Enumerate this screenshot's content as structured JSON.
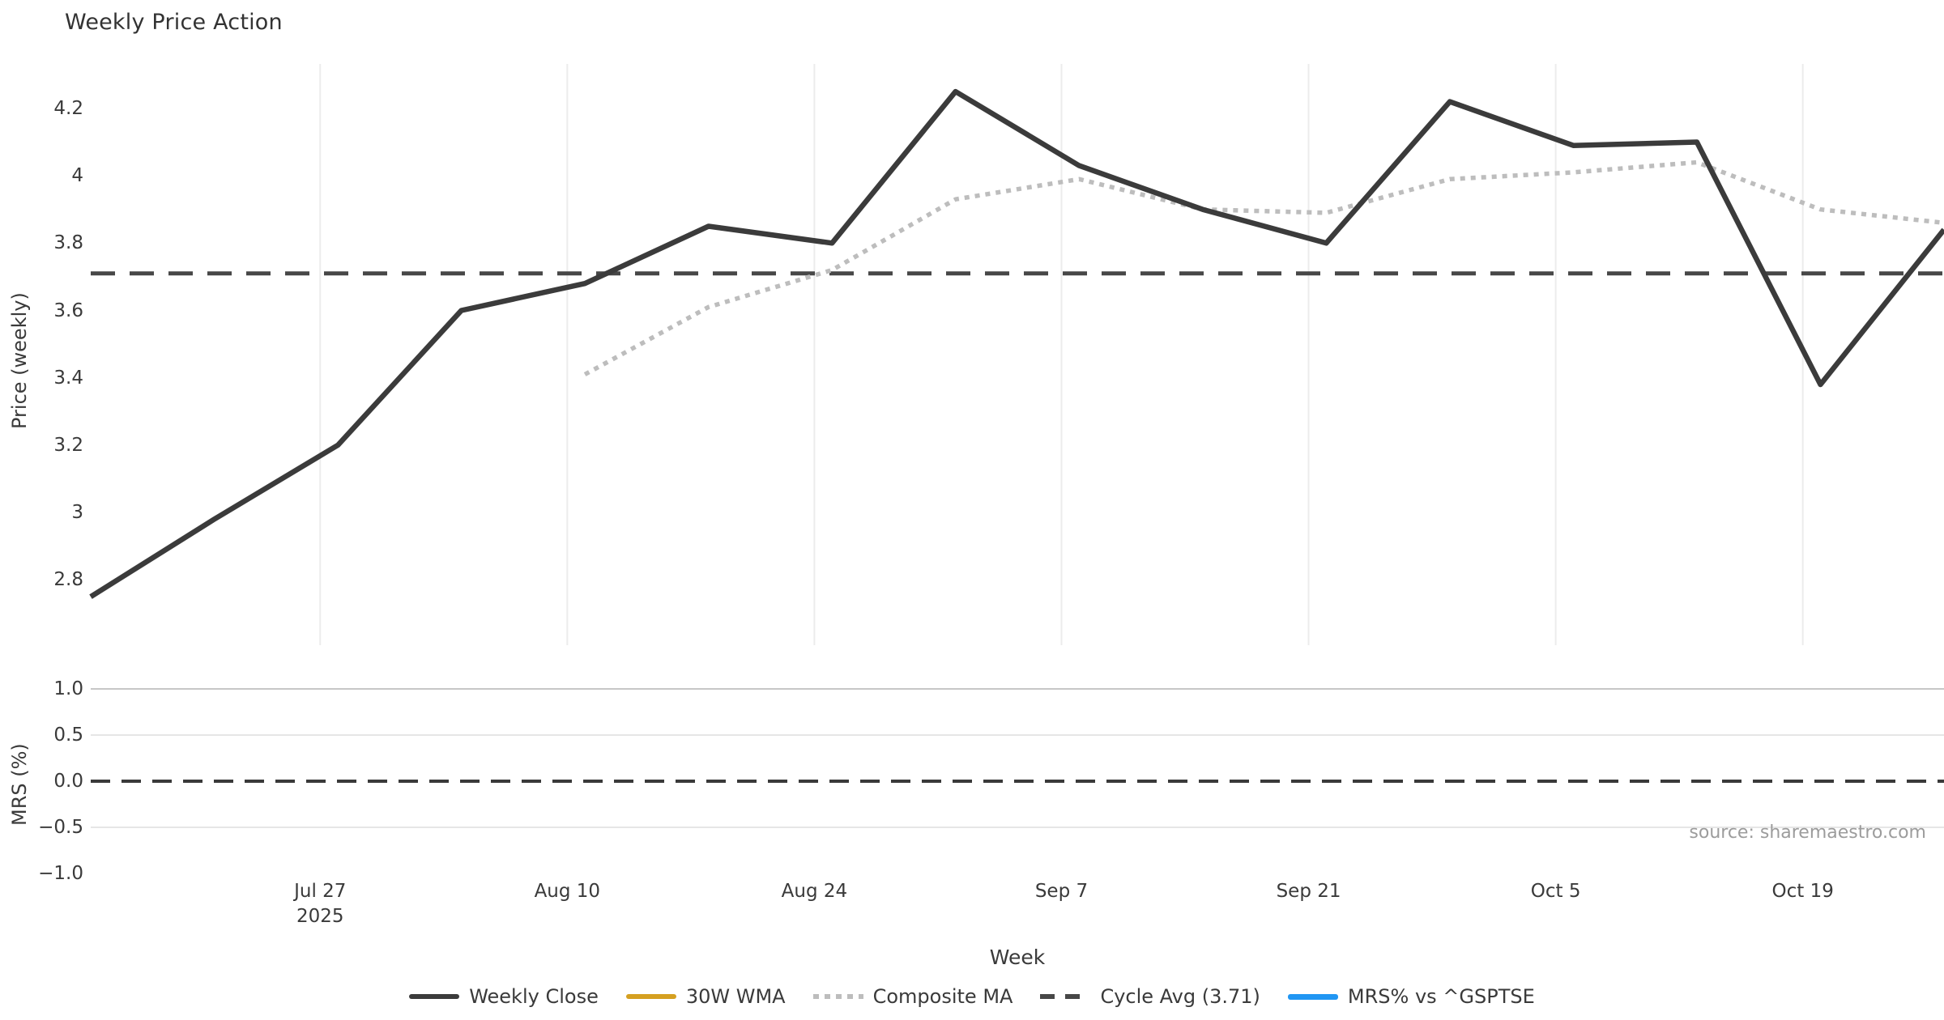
{
  "title": "Weekly Price Action",
  "source_note": "source: sharemaestro.com",
  "colors": {
    "weekly_close": "#3b3b3b",
    "wma_30w": "#d5a021",
    "composite_ma": "#bdbdbd",
    "cycle_avg": "#474747",
    "mrs_line": "#2196f3",
    "grid_vertical": "#ececec",
    "grid_horizontal": "#e6e6e6",
    "grid_strong": "#c7c7c7",
    "text": "#3a3a3a",
    "muted": "#9c9c9c"
  },
  "legend": [
    {
      "label": "Weekly Close",
      "swatch": "solid-dark"
    },
    {
      "label": "30W WMA",
      "swatch": "solid-gold"
    },
    {
      "label": "Composite MA",
      "swatch": "dotted-gray"
    },
    {
      "label": "Cycle Avg (3.71)",
      "swatch": "dashed-dark"
    },
    {
      "label": "MRS% vs ^GSPTSE",
      "swatch": "solid-blue"
    }
  ],
  "chart_data": {
    "type": "line",
    "title": "Weekly Price Action",
    "xlabel": "Week",
    "x_weeks": [
      "Jul 14",
      "Jul 21",
      "Jul 28",
      "Aug 4",
      "Aug 11",
      "Aug 18",
      "Aug 25",
      "Sep 1",
      "Sep 8",
      "Sep 15",
      "Sep 22",
      "Sep 29",
      "Oct 6",
      "Oct 13",
      "Oct 20",
      "Oct 27"
    ],
    "x_range_days": [
      0,
      105
    ],
    "x_ticks": [
      {
        "day": 13,
        "label": "Jul 27",
        "sublabel": "2025"
      },
      {
        "day": 27,
        "label": "Aug 10",
        "sublabel": ""
      },
      {
        "day": 41,
        "label": "Aug 24",
        "sublabel": ""
      },
      {
        "day": 55,
        "label": "Sep 7",
        "sublabel": ""
      },
      {
        "day": 69,
        "label": "Sep 21",
        "sublabel": ""
      },
      {
        "day": 83,
        "label": "Oct 5",
        "sublabel": ""
      },
      {
        "day": 97,
        "label": "Oct 19",
        "sublabel": ""
      }
    ],
    "panels": [
      {
        "name": "price",
        "ylabel": "Price (weekly)",
        "ylim": [
          2.606,
          4.332
        ],
        "yticks": [
          {
            "value": 2.8,
            "label": "2.8"
          },
          {
            "value": 3.0,
            "label": "3"
          },
          {
            "value": 3.2,
            "label": "3.2"
          },
          {
            "value": 3.4,
            "label": "3.4"
          },
          {
            "value": 3.6,
            "label": "3.6"
          },
          {
            "value": 3.8,
            "label": "3.8"
          },
          {
            "value": 4.0,
            "label": "4"
          },
          {
            "value": 4.2,
            "label": "4.2"
          }
        ],
        "grid": "vertical-at-xticks",
        "hline": {
          "name": "Cycle Avg",
          "value": 3.71,
          "style": "dashed"
        },
        "series": [
          {
            "name": "Weekly Close",
            "style": "solid",
            "color_key": "weekly_close",
            "stroke_width": 6.5,
            "start_week_index": 0,
            "values": [
              2.75,
              2.98,
              3.2,
              3.6,
              3.68,
              3.85,
              3.8,
              4.25,
              4.03,
              3.9,
              3.8,
              4.22,
              4.09,
              4.1,
              3.38,
              3.84
            ]
          },
          {
            "name": "Composite MA",
            "style": "dotted",
            "color_key": "composite_ma",
            "stroke_width": 5.5,
            "start_week_index": 4,
            "values": [
              3.41,
              3.61,
              3.72,
              3.93,
              3.99,
              3.9,
              3.89,
              3.99,
              4.01,
              4.04,
              3.9,
              3.86
            ]
          },
          {
            "name": "30W WMA",
            "style": "solid",
            "color_key": "wma_30w",
            "stroke_width": 6,
            "start_week_index": 0,
            "values": []
          }
        ]
      },
      {
        "name": "mrs",
        "ylabel": "MRS (%)",
        "ylim": [
          -1.061,
          1.184
        ],
        "yticks": [
          {
            "value": 1.0,
            "label": "1.0"
          },
          {
            "value": 0.5,
            "label": "0.5"
          },
          {
            "value": 0.0,
            "label": "0.0"
          },
          {
            "value": -0.5,
            "label": "−0.5"
          },
          {
            "value": -1.0,
            "label": "−1.0"
          }
        ],
        "gridlines_horizontal": [
          1.0,
          0.5,
          -0.5
        ],
        "hline": {
          "name": "Zero",
          "value": 0.0,
          "style": "dashed"
        },
        "series": [
          {
            "name": "MRS% vs ^GSPTSE",
            "style": "solid",
            "color_key": "mrs_line",
            "stroke_width": 5,
            "start_week_index": 0,
            "values": []
          }
        ]
      }
    ]
  }
}
